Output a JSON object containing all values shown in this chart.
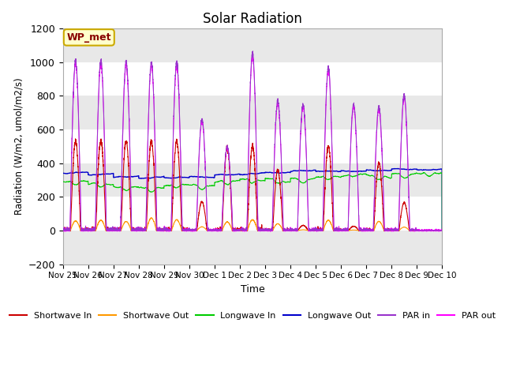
{
  "title": "Solar Radiation",
  "ylabel": "Radiation (W/m2, umol/m2/s)",
  "xlabel": "Time",
  "ylim": [
    -200,
    1200
  ],
  "yticks": [
    -200,
    0,
    200,
    400,
    600,
    800,
    1000,
    1200
  ],
  "xtick_labels": [
    "Nov 25",
    "Nov 26",
    "Nov 27",
    "Nov 28",
    "Nov 29",
    "Nov 30",
    "Dec 1",
    "Dec 2",
    "Dec 3",
    "Dec 4",
    "Dec 5",
    "Dec 6",
    "Dec 7",
    "Dec 8",
    "Dec 9",
    "Dec 10"
  ],
  "legend_entries": [
    "Shortwave In",
    "Shortwave Out",
    "Longwave In",
    "Longwave Out",
    "PAR in",
    "PAR out"
  ],
  "legend_colors": [
    "#cc0000",
    "#ff9900",
    "#00cc00",
    "#0000cc",
    "#9933cc",
    "#ff00ff"
  ],
  "station_label": "WP_met",
  "station_label_color": "#880000",
  "station_box_facecolor": "#ffffcc",
  "station_box_edgecolor": "#ccaa00",
  "n_days": 15,
  "pts_per_day": 288,
  "par_in_peaks": [
    1010,
    1010,
    1005,
    1000,
    998,
    660,
    500,
    1050,
    770,
    750,
    970,
    750,
    735,
    805,
    0
  ],
  "sw_in_peaks": [
    530,
    530,
    530,
    530,
    530,
    170,
    490,
    500,
    360,
    30,
    500,
    25,
    400,
    165,
    0
  ],
  "lw_in_base": [
    290,
    275,
    260,
    255,
    265,
    270,
    285,
    305,
    310,
    310,
    315,
    320,
    330,
    335,
    340
  ],
  "lw_out_base": [
    340,
    330,
    315,
    310,
    315,
    320,
    330,
    330,
    345,
    350,
    350,
    355,
    360,
    365,
    360
  ]
}
